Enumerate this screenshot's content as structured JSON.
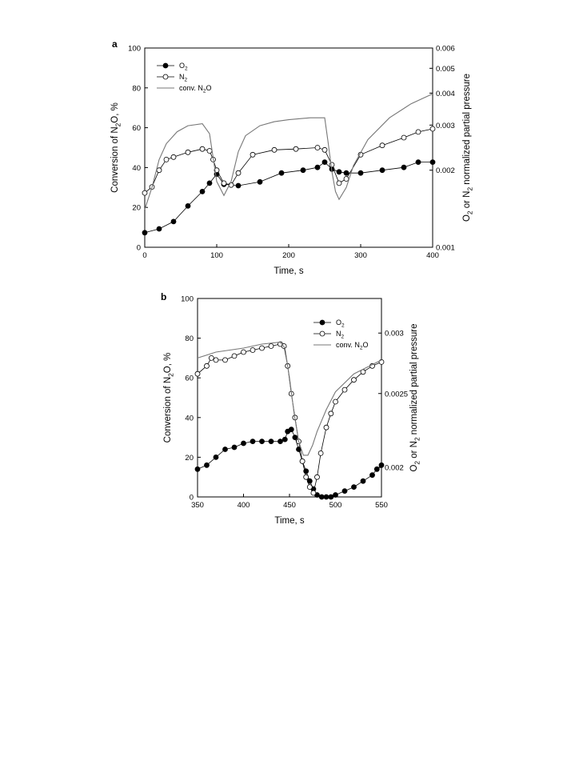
{
  "chart_data": [
    {
      "panel_label": "a",
      "type": "line",
      "xlabel": "Time, s",
      "ylabel": "Conversion of N₂O, %",
      "y2label": "O₂ or N₂ normalized partial pressure",
      "xlim": [
        0,
        400
      ],
      "ylim": [
        0,
        100
      ],
      "y2lim": [
        0.001,
        0.006
      ],
      "y2scale": "log",
      "xticks": [
        "0",
        "100",
        "200",
        "300",
        "400"
      ],
      "yticks": [
        "0",
        "20",
        "40",
        "60",
        "80",
        "100"
      ],
      "y2ticks": [
        "0.001",
        "0.002",
        "0.003",
        "0.004",
        "0.005",
        "0.006"
      ],
      "legend_position": "top-left",
      "series": [
        {
          "name": "O₂",
          "axis": "right",
          "marker": "filled-circle",
          "x": [
            0,
            20,
            40,
            60,
            80,
            90,
            100,
            110,
            130,
            160,
            190,
            220,
            240,
            250,
            260,
            270,
            280,
            300,
            330,
            360,
            380,
            400
          ],
          "y": [
            0.00114,
            0.00118,
            0.00126,
            0.00145,
            0.00165,
            0.00178,
            0.00193,
            0.00176,
            0.00174,
            0.0018,
            0.00195,
            0.002,
            0.00205,
            0.00215,
            0.00202,
            0.00197,
            0.00195,
            0.00195,
            0.002,
            0.00205,
            0.00215,
            0.00215
          ]
        },
        {
          "name": "N₂",
          "axis": "right",
          "marker": "open-circle",
          "x": [
            0,
            10,
            20,
            30,
            40,
            60,
            80,
            90,
            95,
            100,
            110,
            120,
            130,
            150,
            180,
            210,
            240,
            250,
            260,
            270,
            280,
            300,
            330,
            360,
            380,
            400
          ],
          "y": [
            0.00163,
            0.00172,
            0.002,
            0.0022,
            0.00225,
            0.00235,
            0.00242,
            0.00238,
            0.0022,
            0.002,
            0.00178,
            0.00175,
            0.00195,
            0.0023,
            0.0024,
            0.00242,
            0.00245,
            0.0024,
            0.0021,
            0.00178,
            0.00185,
            0.0023,
            0.0025,
            0.00268,
            0.00282,
            0.0029
          ]
        },
        {
          "name": "conv. N₂O",
          "axis": "left",
          "marker": "none",
          "x": [
            0,
            10,
            20,
            30,
            45,
            60,
            80,
            90,
            95,
            100,
            110,
            120,
            130,
            140,
            160,
            180,
            200,
            230,
            250,
            255,
            260,
            265,
            270,
            280,
            290,
            310,
            340,
            370,
            400
          ],
          "y": [
            19,
            30,
            44,
            52,
            58,
            61,
            62,
            57,
            45,
            33,
            26,
            33,
            48,
            56,
            61,
            63,
            64,
            65,
            65,
            52,
            38,
            28,
            24,
            30,
            41,
            54,
            65,
            72,
            77
          ]
        }
      ]
    },
    {
      "panel_label": "b",
      "type": "line",
      "xlabel": "Time, s",
      "ylabel": "Conversion of N₂O, %",
      "y2label": "O₂ or N₂ normalized partial pressure",
      "xlim": [
        350,
        550
      ],
      "ylim": [
        0,
        100
      ],
      "y2lim": [
        0.00183,
        0.00333
      ],
      "y2scale": "log",
      "xticks": [
        "350",
        "400",
        "450",
        "500",
        "550"
      ],
      "yticks": [
        "0",
        "20",
        "40",
        "60",
        "80",
        "100"
      ],
      "y2ticks": [
        "0.002",
        "0.0025",
        "0.003"
      ],
      "legend_position": "top-right",
      "series": [
        {
          "name": "O₂",
          "axis": "left",
          "marker": "filled-circle",
          "x": [
            350,
            360,
            370,
            380,
            390,
            400,
            410,
            420,
            430,
            440,
            445,
            448,
            452,
            456,
            460,
            464,
            468,
            472,
            476,
            480,
            485,
            490,
            495,
            500,
            510,
            520,
            530,
            540,
            545,
            550
          ],
          "y": [
            14,
            16,
            20,
            24,
            25,
            27,
            28,
            28,
            28,
            28,
            29,
            33,
            34,
            30,
            24,
            18,
            13,
            8,
            4,
            1,
            0,
            0,
            0,
            1,
            3,
            5,
            8,
            11,
            14,
            16
          ]
        },
        {
          "name": "N₂",
          "axis": "left",
          "marker": "open-circle",
          "x": [
            350,
            360,
            365,
            370,
            380,
            390,
            400,
            410,
            420,
            430,
            440,
            444,
            448,
            452,
            456,
            460,
            464,
            468,
            472,
            476,
            480,
            484,
            490,
            495,
            500,
            510,
            520,
            530,
            540,
            550
          ],
          "y": [
            62,
            66,
            70,
            69,
            69,
            71,
            73,
            74,
            75,
            76,
            77,
            76,
            66,
            52,
            40,
            28,
            18,
            10,
            5,
            2,
            10,
            22,
            35,
            42,
            48,
            54,
            59,
            63,
            66,
            68
          ]
        },
        {
          "name": "conv. N₂O",
          "axis": "left",
          "marker": "none",
          "x": [
            350,
            370,
            400,
            420,
            440,
            445,
            450,
            455,
            460,
            465,
            470,
            475,
            480,
            490,
            500,
            520,
            550
          ],
          "y": [
            70,
            73,
            75,
            77,
            78,
            75,
            60,
            42,
            28,
            21,
            21,
            26,
            33,
            44,
            53,
            62,
            69
          ]
        }
      ]
    }
  ]
}
